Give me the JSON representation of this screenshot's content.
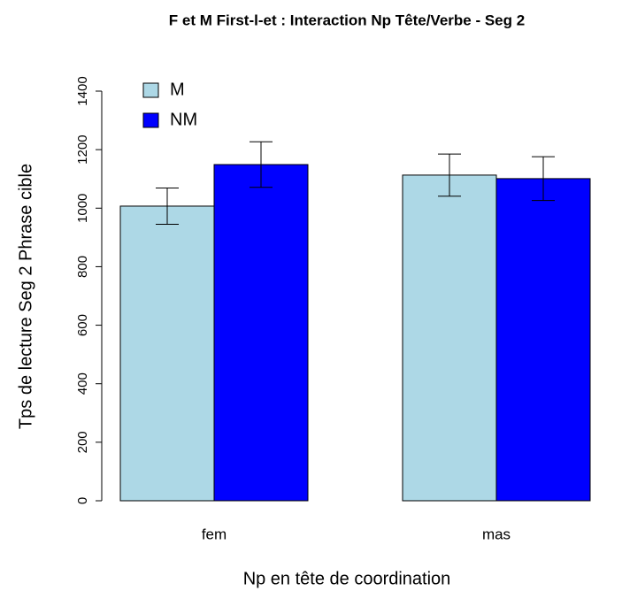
{
  "chart_data": {
    "type": "bar",
    "title": "F et M First-l-et : Interaction Np Tête/Verbe - Seg 2",
    "x_label": "Np en tête de coordination",
    "y_label": "Tps de lecture Seg 2 Phrase cible",
    "categories": [
      "fem",
      "mas"
    ],
    "series": [
      {
        "name": "M",
        "color": "#add8e6",
        "values": [
          1007,
          1113
        ],
        "errors": [
          62,
          72
        ]
      },
      {
        "name": "NM",
        "color": "#0000ff",
        "values": [
          1149,
          1101
        ],
        "errors": [
          78,
          75
        ]
      }
    ],
    "ylim": [
      0,
      1400
    ],
    "yticks": [
      0,
      200,
      400,
      600,
      800,
      1000,
      1200,
      1400
    ],
    "legend": "top-left"
  }
}
